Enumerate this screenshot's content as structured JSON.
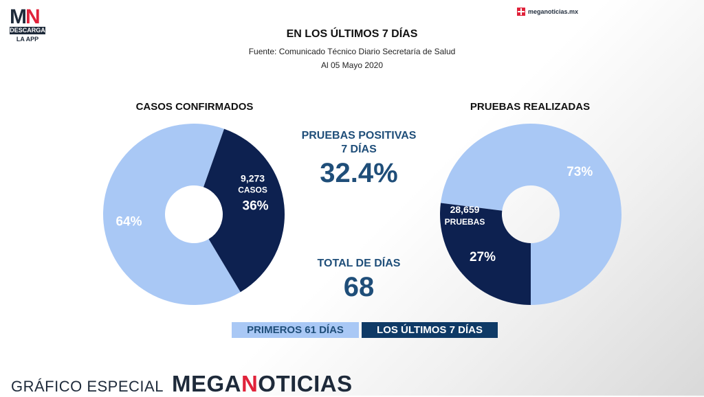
{
  "logo": {
    "letters_m": "M",
    "letters_n": "N",
    "band": "DESCARGA",
    "app": "LA APP"
  },
  "brand_top": "meganoticias.mx",
  "header": {
    "title": "EN LOS ÚLTIMOS 7 DÍAS",
    "source": "Fuente: Comunicado Técnico Diario Secretaría de Salud",
    "date": "Al 05 Mayo 2020"
  },
  "center": {
    "positive_label_1": "PRUEBAS POSITIVAS",
    "positive_label_2": "7 DÍAS",
    "positive_value": "32.4%",
    "total_label": "TOTAL DE DÍAS",
    "total_value": "68"
  },
  "legend": {
    "first": "PRIMEROS 61 DÍAS",
    "last": "LOS ÚLTIMOS 7 DÍAS"
  },
  "footer": {
    "label": "GRÁFICO ESPECIAL",
    "brand_a": "MEGA",
    "brand_b": "N",
    "brand_c": "OTICIAS"
  },
  "colors": {
    "light": "#a9c8f5",
    "dark": "#0d2150",
    "accent": "#1f4e79",
    "brand_red": "#e0223a"
  },
  "chart_data": [
    {
      "type": "pie",
      "title": "CASOS CONFIRMADOS",
      "slices": [
        {
          "name": "PRIMEROS 61 DÍAS",
          "value": 64,
          "label": "64%",
          "color": "#a9c8f5"
        },
        {
          "name": "LOS ÚLTIMOS 7 DÍAS",
          "value": 36,
          "label": "36%",
          "color": "#0d2150",
          "count": "9,273",
          "count_unit": "CASOS"
        }
      ]
    },
    {
      "type": "pie",
      "title": "PRUEBAS REALIZADAS",
      "slices": [
        {
          "name": "PRIMEROS 61 DÍAS",
          "value": 73,
          "label": "73%",
          "color": "#a9c8f5"
        },
        {
          "name": "LOS ÚLTIMOS 7 DÍAS",
          "value": 27,
          "label": "27%",
          "color": "#0d2150",
          "count": "28,659",
          "count_unit": "PRUEBAS"
        }
      ]
    }
  ]
}
